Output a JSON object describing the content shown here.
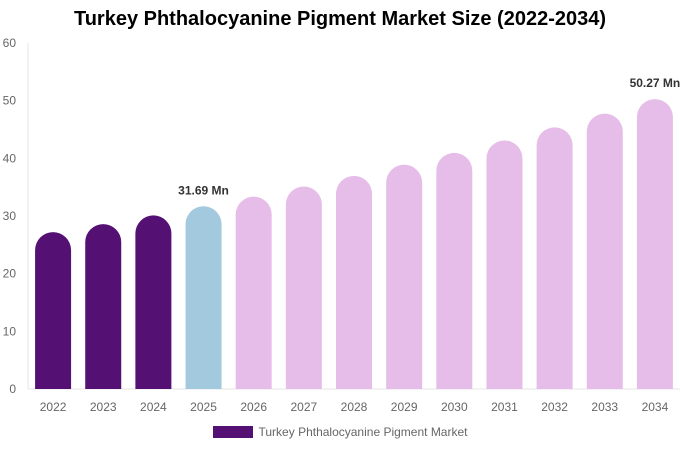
{
  "chart_data": {
    "type": "bar",
    "title": "Turkey Phthalocyanine Pigment Market Size (2022-2034)",
    "xlabel": "",
    "ylabel": "",
    "categories": [
      "2022",
      "2023",
      "2024",
      "2025",
      "2026",
      "2027",
      "2028",
      "2029",
      "2030",
      "2031",
      "2032",
      "2033",
      "2034"
    ],
    "series": [
      {
        "name": "Turkey Phthalocyanine Pigment Market",
        "values": [
          27.2,
          28.6,
          30.1,
          31.69,
          33.36,
          35.11,
          36.96,
          38.9,
          40.95,
          43.1,
          45.37,
          47.76,
          50.27
        ]
      }
    ],
    "data_labels": [
      {
        "category": "2025",
        "text": "31.69 Mn"
      },
      {
        "category": "2034",
        "text": "50.27 Mn"
      }
    ],
    "ylim": [
      0,
      60
    ],
    "yticks": [
      0,
      10,
      20,
      30,
      40,
      50,
      60
    ],
    "grid": false,
    "legend_placement": "bottom",
    "colors": {
      "historical": "#541173",
      "base_year": "#a3c9de",
      "forecast": "#e6bde9"
    },
    "color_groups": [
      "historical",
      "historical",
      "historical",
      "base_year",
      "forecast",
      "forecast",
      "forecast",
      "forecast",
      "forecast",
      "forecast",
      "forecast",
      "forecast",
      "forecast"
    ]
  }
}
